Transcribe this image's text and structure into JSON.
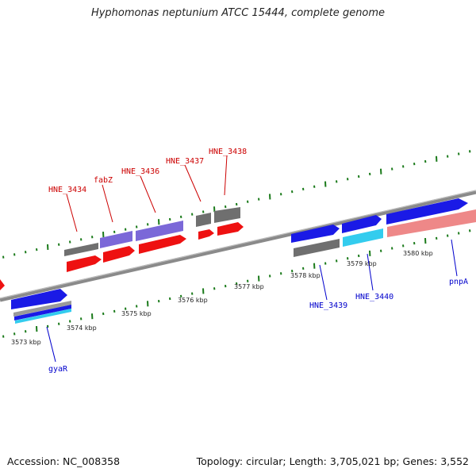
{
  "title": "Hyphomonas neptunium ATCC 15444, complete genome",
  "footer": {
    "accession": "Accession: NC_008358",
    "summary": "Topology: circular; Length: 3,705,021 bp; Genes: 3,552"
  },
  "colors": {
    "backbone": "#8a8a8a",
    "tick": "#1a7a1a",
    "label_top": "#cc0000",
    "label_bottom": "#0000cc",
    "red": "#ee1111",
    "blue": "#1a1ae6",
    "gray": "#707070",
    "purple": "#7b68d8",
    "cyan": "#33ccee",
    "salmon": "#ee8888"
  },
  "tick_labels": [
    "3573 kbp",
    "3574 kbp",
    "3575 kbp",
    "3576 kbp",
    "3577 kbp",
    "3578 kbp",
    "3579 kbp",
    "3580 kbp"
  ],
  "gene_labels": {
    "top": [
      "HNE_3434",
      "fabZ",
      "HNE_3436",
      "HNE_3437",
      "HNE_3438"
    ],
    "bottom": [
      "gyaR",
      "HNE_3439",
      "HNE_3440",
      "pnpA"
    ]
  }
}
